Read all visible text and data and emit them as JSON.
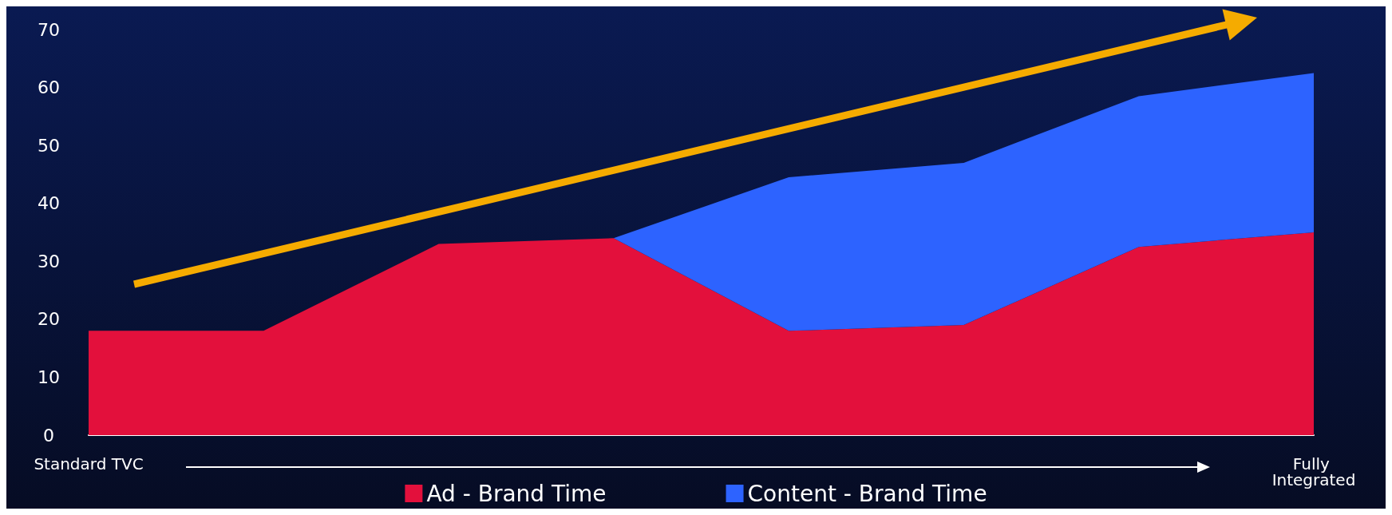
{
  "chart_data": {
    "type": "area",
    "stacked": true,
    "categories": [
      "Standard TVC",
      null,
      null,
      null,
      null,
      null,
      null,
      "Fully Integrated"
    ],
    "series": [
      {
        "name": "Ad - Brand Time",
        "color": "#e3103c",
        "values": [
          18,
          18,
          33,
          34,
          18,
          19,
          32.5,
          35
        ]
      },
      {
        "name": "Content - Brand Time",
        "color": "#2d63ff",
        "values": [
          0,
          0,
          0,
          0,
          26.5,
          28,
          26,
          27.5
        ]
      }
    ],
    "ylim": [
      0,
      70
    ],
    "yticks": [
      0,
      10,
      20,
      30,
      40,
      50,
      60,
      70
    ],
    "grid": false,
    "legend": "bottom"
  }
}
